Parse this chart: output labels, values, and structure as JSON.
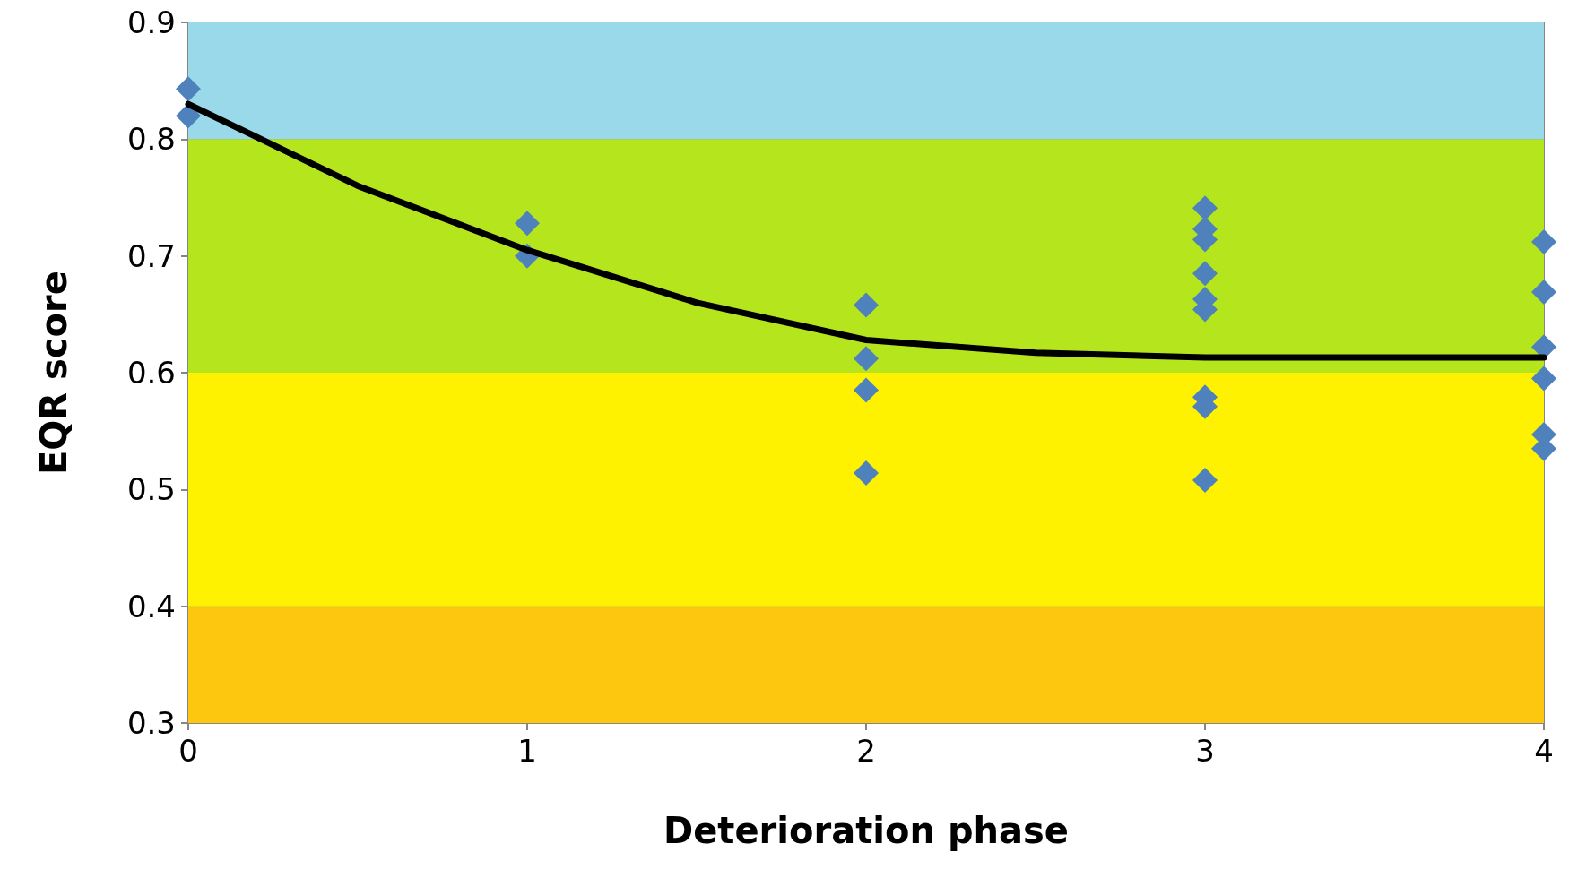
{
  "chart_data": {
    "type": "scatter",
    "xlabel": "Deterioration phase",
    "ylabel": "EQR score",
    "xlim": [
      0,
      4
    ],
    "xticks": [
      0,
      1,
      2,
      3,
      4
    ],
    "ylim": [
      0.3,
      0.9
    ],
    "yticks": [
      0.3,
      0.4,
      0.5,
      0.6,
      0.7,
      0.8,
      0.9
    ],
    "grid": true,
    "marker": "diamond",
    "bands": [
      {
        "axis": "y",
        "from": 0.3,
        "to": 0.4,
        "color": "#fdc60f"
      },
      {
        "axis": "y",
        "from": 0.4,
        "to": 0.6,
        "color": "#fff200"
      },
      {
        "axis": "y",
        "from": 0.6,
        "to": 0.8,
        "color": "#b5e61d"
      },
      {
        "axis": "y",
        "from": 0.8,
        "to": 0.9,
        "color": "#99d9ea"
      }
    ],
    "series": [
      {
        "color": "#4f81bd",
        "x": [
          0,
          0,
          1,
          1,
          2,
          2,
          2,
          2,
          3,
          3,
          3,
          3,
          3,
          3,
          3,
          3,
          3,
          4,
          4,
          4,
          4,
          4,
          4
        ],
        "values": [
          0.843,
          0.82,
          0.728,
          0.7,
          0.658,
          0.612,
          0.585,
          0.514,
          0.741,
          0.723,
          0.714,
          0.685,
          0.663,
          0.654,
          0.579,
          0.571,
          0.508,
          0.712,
          0.669,
          0.622,
          0.595,
          0.547,
          0.535
        ]
      },
      {
        "type": "line",
        "color": "#000000",
        "marker": "none",
        "x": [
          0,
          0.5,
          1,
          1.5,
          2,
          2.5,
          3,
          3.5,
          4
        ],
        "values": [
          0.83,
          0.76,
          0.705,
          0.66,
          0.628,
          0.617,
          0.613,
          0.613,
          0.613
        ]
      }
    ]
  }
}
